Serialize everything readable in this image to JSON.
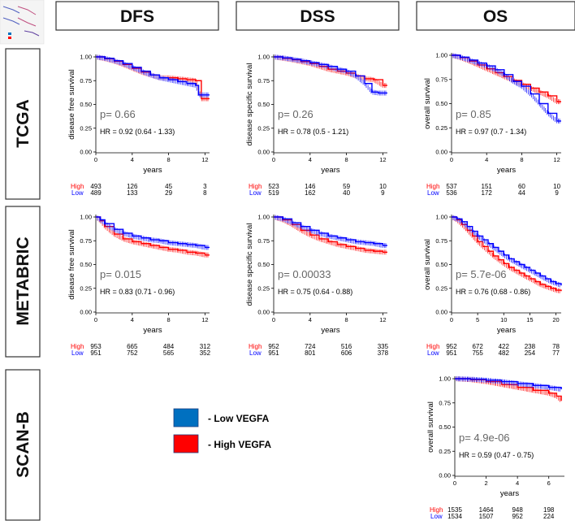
{
  "columns": [
    "DFS",
    "DSS",
    "OS"
  ],
  "rows": [
    "TCGA",
    "METABRIC",
    "SCAN-B"
  ],
  "legend": [
    {
      "label": "- Low VEGFA",
      "color": "#0070C0"
    },
    {
      "label": "- High VEGFA",
      "color": "#FF0000"
    }
  ],
  "colors": {
    "high": "#FF0000",
    "low": "#0000FF",
    "legend_low": "#0070C0",
    "legend_high": "#FF0000"
  },
  "risk_labels": {
    "high": "High",
    "low": "Low"
  },
  "chart_data": [
    {
      "id": "tcga-dfs",
      "type": "line",
      "ylabel": "disease free survival",
      "xlabel": "years",
      "xlim": [
        0,
        12.5
      ],
      "xticks": [
        0,
        4,
        8,
        12
      ],
      "ylim": [
        0,
        1
      ],
      "yticks": [
        "0.00",
        "0.25",
        "0.50",
        "0.75",
        "1.00"
      ],
      "pvalue": "p= 0.66",
      "hr": "HR = 0.92 (0.64 - 1.33)",
      "series": [
        {
          "name": "Low",
          "x": [
            0,
            1,
            2,
            3,
            4,
            5,
            6,
            7,
            8,
            9,
            10,
            11,
            11.3,
            12.5
          ],
          "y": [
            1.0,
            0.985,
            0.96,
            0.93,
            0.89,
            0.85,
            0.81,
            0.78,
            0.76,
            0.74,
            0.72,
            0.7,
            0.6,
            0.6
          ]
        },
        {
          "name": "High",
          "x": [
            0,
            1,
            2,
            3,
            4,
            5,
            6,
            7,
            8,
            9,
            10,
            11,
            11.6,
            12.5
          ],
          "y": [
            1.0,
            0.98,
            0.955,
            0.92,
            0.88,
            0.84,
            0.81,
            0.78,
            0.78,
            0.77,
            0.76,
            0.75,
            0.56,
            0.56
          ]
        }
      ],
      "risk": {
        "high": [
          "493",
          "126",
          "45",
          "3"
        ],
        "low": [
          "489",
          "133",
          "29",
          "8"
        ]
      }
    },
    {
      "id": "tcga-dss",
      "type": "line",
      "ylabel": "disease specific survival",
      "xlabel": "years",
      "xlim": [
        0,
        12.5
      ],
      "xticks": [
        0,
        4,
        8,
        12
      ],
      "ylim": [
        0,
        1
      ],
      "yticks": [
        "0.00",
        "0.25",
        "0.50",
        "0.75",
        "1.00"
      ],
      "pvalue": "p= 0.26",
      "hr": "HR = 0.78 (0.5 - 1.21)",
      "series": [
        {
          "name": "Low",
          "x": [
            0,
            1,
            2,
            3,
            4,
            5,
            6,
            7,
            8,
            9,
            10,
            10.8,
            11.5,
            12.5
          ],
          "y": [
            1.0,
            0.99,
            0.975,
            0.96,
            0.94,
            0.92,
            0.9,
            0.87,
            0.85,
            0.8,
            0.72,
            0.63,
            0.62,
            0.62
          ]
        },
        {
          "name": "High",
          "x": [
            0,
            1,
            2,
            3,
            4,
            5,
            6,
            7,
            8,
            9,
            10,
            11,
            12,
            12.5
          ],
          "y": [
            1.0,
            0.985,
            0.97,
            0.95,
            0.93,
            0.9,
            0.87,
            0.85,
            0.83,
            0.8,
            0.77,
            0.76,
            0.7,
            0.7
          ]
        }
      ],
      "risk": {
        "high": [
          "523",
          "146",
          "59",
          "10"
        ],
        "low": [
          "519",
          "162",
          "40",
          "9"
        ]
      }
    },
    {
      "id": "tcga-os",
      "type": "line",
      "ylabel": "overall survival",
      "xlabel": "years",
      "xlim": [
        0,
        12.5
      ],
      "xticks": [
        0,
        4,
        8,
        12
      ],
      "ylim": [
        0,
        1
      ],
      "yticks": [
        "0.00",
        "0.25",
        "0.50",
        "0.75",
        "1.00"
      ],
      "pvalue": "p= 0.85",
      "hr": "HR = 0.97 (0.7 - 1.34)",
      "series": [
        {
          "name": "Low",
          "x": [
            0,
            1,
            2,
            3,
            4,
            5,
            6,
            7,
            8,
            9,
            10,
            11,
            12,
            12.5
          ],
          "y": [
            1.0,
            0.98,
            0.95,
            0.92,
            0.89,
            0.85,
            0.8,
            0.73,
            0.68,
            0.6,
            0.5,
            0.4,
            0.32,
            0.32
          ]
        },
        {
          "name": "High",
          "x": [
            0,
            1,
            2,
            3,
            4,
            5,
            6,
            7,
            8,
            9,
            10,
            11,
            12,
            12.5
          ],
          "y": [
            1.0,
            0.975,
            0.94,
            0.9,
            0.86,
            0.82,
            0.78,
            0.74,
            0.7,
            0.66,
            0.62,
            0.58,
            0.52,
            0.52
          ]
        }
      ],
      "risk": {
        "high": [
          "537",
          "151",
          "60",
          "10"
        ],
        "low": [
          "536",
          "172",
          "44",
          "9"
        ]
      }
    },
    {
      "id": "metabric-dfs",
      "type": "line",
      "ylabel": "disease free survival",
      "xlabel": "years",
      "xlim": [
        0,
        12.5
      ],
      "xticks": [
        0,
        4,
        8,
        12
      ],
      "ylim": [
        0,
        1
      ],
      "yticks": [
        "0.00",
        "0.25",
        "0.50",
        "0.75",
        "1.00"
      ],
      "pvalue": "p= 0.015",
      "hr": "HR = 0.83 (0.71 - 0.96)",
      "series": [
        {
          "name": "Low",
          "x": [
            0,
            0.5,
            1,
            2,
            3,
            4,
            5,
            6,
            7,
            8,
            9,
            10,
            11,
            12,
            12.5
          ],
          "y": [
            1.0,
            0.97,
            0.93,
            0.87,
            0.83,
            0.8,
            0.78,
            0.76,
            0.75,
            0.73,
            0.72,
            0.71,
            0.7,
            0.68,
            0.68
          ]
        },
        {
          "name": "High",
          "x": [
            0,
            0.5,
            1,
            2,
            3,
            4,
            5,
            6,
            7,
            8,
            9,
            10,
            11,
            12,
            12.5
          ],
          "y": [
            1.0,
            0.96,
            0.9,
            0.82,
            0.77,
            0.74,
            0.72,
            0.7,
            0.68,
            0.66,
            0.65,
            0.63,
            0.62,
            0.6,
            0.6
          ]
        }
      ],
      "risk": {
        "high": [
          "953",
          "665",
          "484",
          "312"
        ],
        "low": [
          "951",
          "752",
          "565",
          "352"
        ]
      }
    },
    {
      "id": "metabric-dss",
      "type": "line",
      "ylabel": "disease specific survival",
      "xlabel": "years",
      "xlim": [
        0,
        12.5
      ],
      "xticks": [
        0,
        4,
        8,
        12
      ],
      "ylim": [
        0,
        1
      ],
      "yticks": [
        "0.00",
        "0.25",
        "0.50",
        "0.75",
        "1.00"
      ],
      "pvalue": "p= 0.00033",
      "hr": "HR = 0.75 (0.64 - 0.88)",
      "series": [
        {
          "name": "Low",
          "x": [
            0,
            1,
            2,
            3,
            4,
            5,
            6,
            7,
            8,
            9,
            10,
            11,
            12,
            12.5
          ],
          "y": [
            1.0,
            0.98,
            0.94,
            0.9,
            0.86,
            0.83,
            0.8,
            0.78,
            0.76,
            0.74,
            0.73,
            0.72,
            0.7,
            0.7
          ]
        },
        {
          "name": "High",
          "x": [
            0,
            1,
            2,
            3,
            4,
            5,
            6,
            7,
            8,
            9,
            10,
            11,
            12,
            12.5
          ],
          "y": [
            1.0,
            0.97,
            0.92,
            0.86,
            0.81,
            0.77,
            0.74,
            0.71,
            0.69,
            0.67,
            0.65,
            0.64,
            0.63,
            0.63
          ]
        }
      ],
      "risk": {
        "high": [
          "952",
          "724",
          "516",
          "335"
        ],
        "low": [
          "951",
          "801",
          "606",
          "378"
        ]
      }
    },
    {
      "id": "metabric-os",
      "type": "line",
      "ylabel": "overall survival",
      "xlabel": "years",
      "xlim": [
        0,
        21
      ],
      "xticks": [
        0,
        5,
        10,
        15,
        20
      ],
      "ylim": [
        0,
        1
      ],
      "yticks": [
        "0.00",
        "0.25",
        "0.50",
        "0.75",
        "1.00"
      ],
      "pvalue": "p= 5.7e-06",
      "hr": "HR = 0.76 (0.68 - 0.86)",
      "series": [
        {
          "name": "Low",
          "x": [
            0,
            1,
            2,
            3,
            4,
            5,
            6,
            7,
            8,
            9,
            10,
            11,
            12,
            13,
            14,
            15,
            16,
            17,
            18,
            19,
            20,
            21
          ],
          "y": [
            1.0,
            0.98,
            0.95,
            0.9,
            0.85,
            0.8,
            0.76,
            0.72,
            0.68,
            0.64,
            0.6,
            0.56,
            0.53,
            0.5,
            0.47,
            0.44,
            0.41,
            0.38,
            0.35,
            0.32,
            0.3,
            0.28
          ]
        },
        {
          "name": "High",
          "x": [
            0,
            1,
            2,
            3,
            4,
            5,
            6,
            7,
            8,
            9,
            10,
            11,
            12,
            13,
            14,
            15,
            16,
            17,
            18,
            19,
            20,
            21
          ],
          "y": [
            1.0,
            0.97,
            0.92,
            0.86,
            0.8,
            0.74,
            0.69,
            0.64,
            0.59,
            0.55,
            0.51,
            0.47,
            0.44,
            0.41,
            0.38,
            0.35,
            0.32,
            0.29,
            0.27,
            0.25,
            0.23,
            0.22
          ]
        }
      ],
      "risk": {
        "high": [
          "952",
          "672",
          "422",
          "238",
          "78"
        ],
        "low": [
          "951",
          "755",
          "482",
          "254",
          "77"
        ]
      }
    },
    {
      "id": "scanb-os",
      "type": "line",
      "ylabel": "overall survival",
      "xlabel": "years",
      "xlim": [
        0,
        7
      ],
      "xticks": [
        0,
        2,
        4,
        6
      ],
      "ylim": [
        0,
        1
      ],
      "yticks": [
        "0.00",
        "0.25",
        "0.50",
        "0.75",
        "1.00"
      ],
      "pvalue": "p= 4.9e-06",
      "hr": "HR = 0.59 (0.47 - 0.75)",
      "series": [
        {
          "name": "Low",
          "x": [
            0,
            1,
            2,
            3,
            4,
            5,
            6,
            6.8
          ],
          "y": [
            1.0,
            0.995,
            0.985,
            0.97,
            0.95,
            0.93,
            0.91,
            0.89
          ]
        },
        {
          "name": "High",
          "x": [
            0,
            1,
            2,
            3,
            4,
            5,
            6,
            6.5,
            6.8
          ],
          "y": [
            1.0,
            0.99,
            0.97,
            0.94,
            0.91,
            0.88,
            0.85,
            0.82,
            0.77
          ]
        }
      ],
      "risk": {
        "high": [
          "1535",
          "1464",
          "948",
          "198"
        ],
        "low": [
          "1534",
          "1507",
          "952",
          "224"
        ]
      }
    }
  ]
}
